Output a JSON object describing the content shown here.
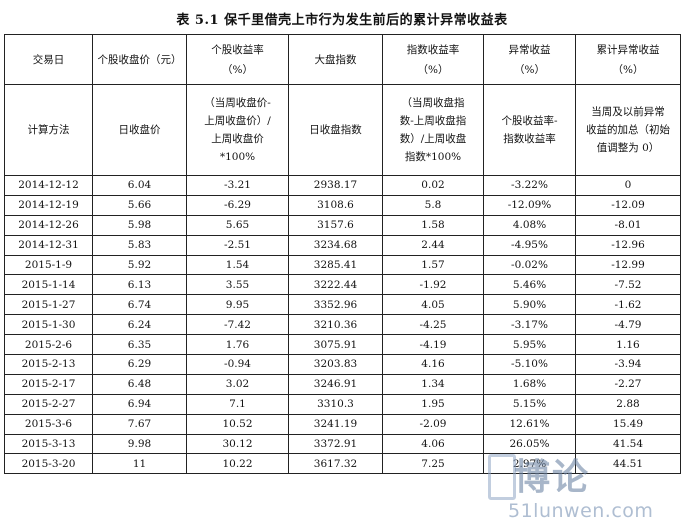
{
  "title": "表 5.1  保千里借壳上市行为发生前后的累计异常收益表",
  "header": {
    "row1": [
      [
        "交易日"
      ],
      [
        "个股收盘价（元）"
      ],
      [
        "个股收益率",
        "（%）"
      ],
      [
        "大盘指数"
      ],
      [
        "指数收益率",
        "（%）"
      ],
      [
        "异常收益",
        "（%）"
      ],
      [
        "累计异常收益",
        "（%）"
      ]
    ],
    "row2": [
      [
        "计算方法"
      ],
      [
        "日收盘价"
      ],
      [
        "（当周收盘价-",
        "上周收盘价）/",
        "上周收盘价",
        "*100%"
      ],
      [
        "日收盘指数"
      ],
      [
        "（当周收盘指",
        "数-上周收盘指",
        "数）/上周收盘",
        "指数*100%"
      ],
      [
        "个股收益率-",
        "指数收益率"
      ],
      [
        "当周及以前异常",
        "收益的加总（初始",
        "值调整为 0）"
      ]
    ]
  },
  "rows": [
    [
      "2014-12-12",
      "6.04",
      "-3.21",
      "2938.17",
      "0.02",
      "-3.22%",
      "0"
    ],
    [
      "2014-12-19",
      "5.66",
      "-6.29",
      "3108.6",
      "5.8",
      "-12.09%",
      "-12.09"
    ],
    [
      "2014-12-26",
      "5.98",
      "5.65",
      "3157.6",
      "1.58",
      "4.08%",
      "-8.01"
    ],
    [
      "2014-12-31",
      "5.83",
      "-2.51",
      "3234.68",
      "2.44",
      "-4.95%",
      "-12.96"
    ],
    [
      "2015-1-9",
      "5.92",
      "1.54",
      "3285.41",
      "1.57",
      "-0.02%",
      "-12.99"
    ],
    [
      "2015-1-14",
      "6.13",
      "3.55",
      "3222.44",
      "-1.92",
      "5.46%",
      "-7.52"
    ],
    [
      "2015-1-27",
      "6.74",
      "9.95",
      "3352.96",
      "4.05",
      "5.90%",
      "-1.62"
    ],
    [
      "2015-1-30",
      "6.24",
      "-7.42",
      "3210.36",
      "-4.25",
      "-3.17%",
      "-4.79"
    ],
    [
      "2015-2-6",
      "6.35",
      "1.76",
      "3075.91",
      "-4.19",
      "5.95%",
      "1.16"
    ],
    [
      "2015-2-13",
      "6.29",
      "-0.94",
      "3203.83",
      "4.16",
      "-5.10%",
      "-3.94"
    ],
    [
      "2015-2-17",
      "6.48",
      "3.02",
      "3246.91",
      "1.34",
      "1.68%",
      "-2.27"
    ],
    [
      "2015-2-27",
      "6.94",
      "7.1",
      "3310.3",
      "1.95",
      "5.15%",
      "2.88"
    ],
    [
      "2015-3-6",
      "7.67",
      "10.52",
      "3241.19",
      "-2.09",
      "12.61%",
      "15.49"
    ],
    [
      "2015-3-13",
      "9.98",
      "30.12",
      "3372.91",
      "4.06",
      "26.05%",
      "41.54"
    ],
    [
      "2015-3-20",
      "11",
      "10.22",
      "3617.32",
      "7.25",
      "2.97%",
      "44.51"
    ]
  ],
  "watermark": {
    "text": "博论",
    "url": "51lunwen.com"
  }
}
